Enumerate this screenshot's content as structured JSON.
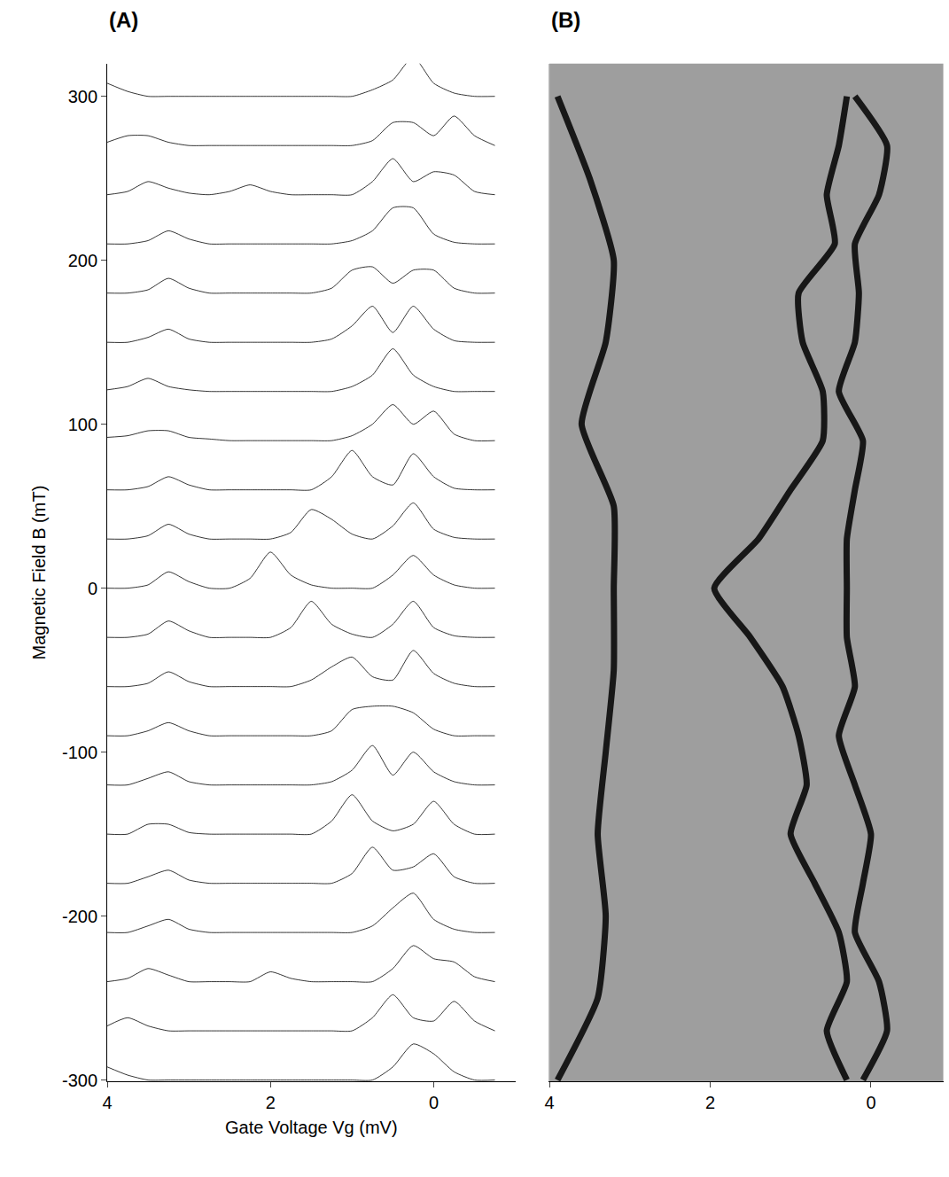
{
  "chart_data": [
    {
      "type": "line",
      "label": "(A)",
      "color": "#000000",
      "x_label": "Gate Voltage Vg (mV)",
      "y_label": "Magnetic Field B (mT)",
      "x": [
        4,
        3.75,
        3.5,
        3.25,
        3,
        2.75,
        2.5,
        2.25,
        2,
        1.75,
        1.5,
        1.25,
        1,
        0.75,
        0.5,
        0.25,
        0,
        -0.25,
        -0.5,
        -0.75
      ],
      "xlim": [
        4,
        -1
      ],
      "ylim": [
        -301,
        320
      ],
      "xticks": [
        4,
        2,
        0
      ],
      "yticks": [
        -300,
        -200,
        -100,
        0,
        100,
        200,
        300
      ],
      "series": [
        {
          "offset": -300,
          "values": [
            8,
            3,
            0,
            0,
            0,
            0,
            0,
            0,
            0,
            0,
            0,
            0,
            0,
            0,
            8,
            22,
            16,
            5,
            0,
            0
          ]
        },
        {
          "offset": -270,
          "values": [
            3,
            8,
            3,
            0,
            0,
            0,
            0,
            0,
            0,
            0,
            0,
            0,
            0,
            8,
            22,
            8,
            6,
            18,
            6,
            0
          ]
        },
        {
          "offset": -240,
          "values": [
            0,
            2,
            8,
            4,
            0,
            0,
            0,
            0,
            6,
            2,
            0,
            0,
            0,
            0,
            8,
            22,
            14,
            12,
            3,
            0
          ]
        },
        {
          "offset": -210,
          "values": [
            0,
            0,
            4,
            8,
            2,
            0,
            0,
            0,
            0,
            0,
            0,
            0,
            0,
            4,
            15,
            24,
            8,
            2,
            0,
            0
          ]
        },
        {
          "offset": -180,
          "values": [
            0,
            0,
            4,
            8,
            2,
            0,
            0,
            0,
            0,
            0,
            0,
            0,
            6,
            22,
            8,
            10,
            18,
            4,
            0,
            0
          ]
        },
        {
          "offset": -150,
          "values": [
            0,
            0,
            6,
            6,
            1,
            0,
            0,
            0,
            0,
            0,
            0,
            8,
            24,
            8,
            2,
            6,
            20,
            6,
            0,
            0
          ]
        },
        {
          "offset": -120,
          "values": [
            0,
            0,
            4,
            8,
            2,
            0,
            0,
            0,
            0,
            0,
            0,
            2,
            9,
            24,
            6,
            20,
            8,
            2,
            0,
            0
          ]
        },
        {
          "offset": -90,
          "values": [
            0,
            0,
            3,
            8,
            3,
            0,
            0,
            0,
            0,
            0,
            0,
            3,
            16,
            18,
            18,
            14,
            4,
            0,
            0,
            0
          ]
        },
        {
          "offset": -60,
          "values": [
            0,
            0,
            2,
            9,
            3,
            0,
            0,
            0,
            0,
            0,
            4,
            12,
            18,
            6,
            4,
            22,
            8,
            2,
            0,
            0
          ]
        },
        {
          "offset": -30,
          "values": [
            0,
            0,
            2,
            10,
            4,
            0,
            0,
            0,
            0,
            6,
            22,
            8,
            2,
            0,
            8,
            22,
            6,
            1,
            0,
            0
          ]
        },
        {
          "offset": 0,
          "values": [
            0,
            0,
            2,
            10,
            4,
            0,
            0,
            6,
            22,
            8,
            2,
            0,
            0,
            0,
            8,
            20,
            8,
            2,
            0,
            0
          ]
        },
        {
          "offset": 30,
          "values": [
            0,
            0,
            2,
            9,
            3,
            0,
            0,
            0,
            0,
            4,
            18,
            12,
            3,
            0,
            8,
            22,
            6,
            1,
            0,
            0
          ]
        },
        {
          "offset": 60,
          "values": [
            0,
            0,
            2,
            8,
            3,
            0,
            0,
            0,
            0,
            0,
            0,
            8,
            24,
            8,
            3,
            22,
            8,
            1,
            0,
            0
          ]
        },
        {
          "offset": 90,
          "values": [
            2,
            3,
            6,
            6,
            2,
            1,
            0,
            0,
            0,
            0,
            0,
            0,
            3,
            10,
            22,
            10,
            18,
            4,
            0,
            0
          ]
        },
        {
          "offset": 120,
          "values": [
            1,
            3,
            8,
            3,
            1,
            0,
            0,
            0,
            0,
            0,
            0,
            0,
            3,
            10,
            26,
            10,
            3,
            0,
            0,
            0
          ]
        },
        {
          "offset": 150,
          "values": [
            0,
            0,
            3,
            8,
            2,
            0,
            0,
            0,
            0,
            0,
            0,
            2,
            10,
            22,
            6,
            22,
            8,
            1,
            0,
            0
          ]
        },
        {
          "offset": 180,
          "values": [
            0,
            0,
            2,
            9,
            3,
            0,
            0,
            0,
            0,
            0,
            0,
            3,
            14,
            16,
            6,
            14,
            14,
            3,
            0,
            0
          ]
        },
        {
          "offset": 210,
          "values": [
            0,
            0,
            2,
            8,
            3,
            0,
            0,
            0,
            0,
            0,
            0,
            0,
            2,
            8,
            22,
            22,
            6,
            1,
            0,
            0
          ]
        },
        {
          "offset": 240,
          "values": [
            0,
            2,
            8,
            4,
            1,
            0,
            2,
            6,
            2,
            0,
            0,
            0,
            0,
            8,
            22,
            8,
            14,
            12,
            2,
            0
          ]
        },
        {
          "offset": 270,
          "values": [
            2,
            6,
            6,
            2,
            0,
            0,
            0,
            0,
            0,
            0,
            0,
            0,
            0,
            3,
            14,
            14,
            6,
            18,
            6,
            0
          ]
        },
        {
          "offset": 300,
          "values": [
            8,
            3,
            0,
            0,
            0,
            0,
            0,
            0,
            0,
            0,
            0,
            0,
            0,
            4,
            10,
            24,
            8,
            2,
            0,
            0
          ]
        }
      ]
    },
    {
      "type": "line",
      "label": "(B)",
      "color": "#000000",
      "tick_labels": "x",
      "xlim": [
        4,
        -0.9
      ],
      "ylim": [
        -301,
        320
      ],
      "xticks": [
        4,
        2,
        0
      ],
      "series": [
        {
          "x": [
            0.3,
            0.55,
            0.3,
            0.4,
            0.7,
            1.0,
            0.8,
            0.9,
            1.1,
            1.5,
            1.95,
            1.4,
            1.0,
            0.6,
            0.6,
            0.85,
            0.9,
            0.45,
            0.55,
            0.4,
            0.3
          ],
          "y": [
            -300,
            -270,
            -240,
            -210,
            -180,
            -150,
            -120,
            -90,
            -60,
            -30,
            0,
            30,
            60,
            90,
            120,
            150,
            180,
            210,
            240,
            270,
            300
          ]
        },
        {
          "x": [
            0.1,
            -0.2,
            -0.1,
            0.2,
            0.1,
            0.0,
            0.2,
            0.4,
            0.2,
            0.3,
            0.3,
            0.3,
            0.2,
            0.1,
            0.4,
            0.2,
            0.15,
            0.2,
            -0.1,
            -0.2,
            0.2
          ],
          "y": [
            -300,
            -270,
            -240,
            -210,
            -180,
            -150,
            -120,
            -90,
            -60,
            -30,
            0,
            30,
            60,
            90,
            120,
            150,
            180,
            210,
            240,
            270,
            300
          ]
        },
        {
          "x": [
            3.9,
            3.4,
            3.3,
            3.4,
            3.3,
            3.2,
            3.2,
            3.2,
            3.6,
            3.3,
            3.2,
            3.5,
            3.9
          ],
          "y": [
            -300,
            -250,
            -200,
            -150,
            -100,
            -50,
            0,
            50,
            100,
            150,
            200,
            250,
            300
          ]
        }
      ]
    }
  ]
}
